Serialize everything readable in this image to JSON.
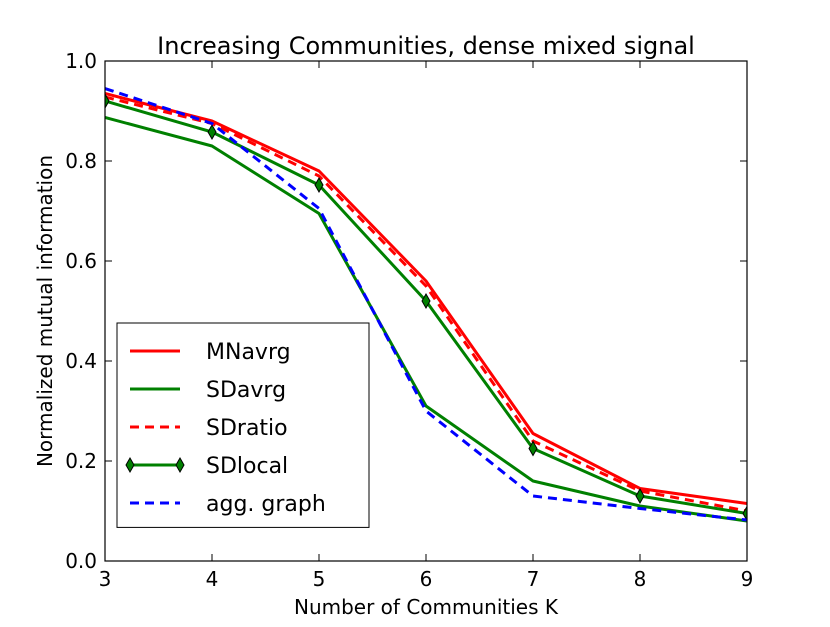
{
  "chart_data": {
    "type": "line",
    "title": "Increasing Communities, dense mixed signal",
    "xlabel": "Number of Communities K",
    "ylabel": "Normalized mutual information",
    "x": [
      3,
      4,
      5,
      6,
      7,
      8,
      9
    ],
    "xlim": [
      3,
      9
    ],
    "ylim": [
      0.0,
      1.0
    ],
    "xticks": [
      "3",
      "4",
      "5",
      "6",
      "7",
      "8",
      "9"
    ],
    "yticks": [
      "0.0",
      "0.2",
      "0.4",
      "0.6",
      "0.8",
      "1.0"
    ],
    "grid": false,
    "legend_position": "lower-left",
    "series": [
      {
        "name": "MNavrg",
        "color": "#ff0000",
        "style": "solid",
        "marker": "none",
        "values": [
          0.935,
          0.88,
          0.78,
          0.56,
          0.255,
          0.145,
          0.115
        ]
      },
      {
        "name": "SDavrg",
        "color": "#008000",
        "style": "solid",
        "marker": "none",
        "values": [
          0.887,
          0.83,
          0.695,
          0.31,
          0.16,
          0.11,
          0.08
        ]
      },
      {
        "name": "SDratio",
        "color": "#ff0000",
        "style": "dashed",
        "marker": "none",
        "values": [
          0.928,
          0.875,
          0.77,
          0.55,
          0.24,
          0.14,
          0.1
        ]
      },
      {
        "name": "SDlocal",
        "color": "#008000",
        "style": "solid",
        "marker": "diamond",
        "values": [
          0.92,
          0.858,
          0.752,
          0.52,
          0.225,
          0.13,
          0.095
        ]
      },
      {
        "name": "agg. graph",
        "color": "#0000ff",
        "style": "dashed",
        "marker": "none",
        "values": [
          0.945,
          0.875,
          0.705,
          0.3,
          0.13,
          0.105,
          0.082
        ]
      }
    ]
  }
}
